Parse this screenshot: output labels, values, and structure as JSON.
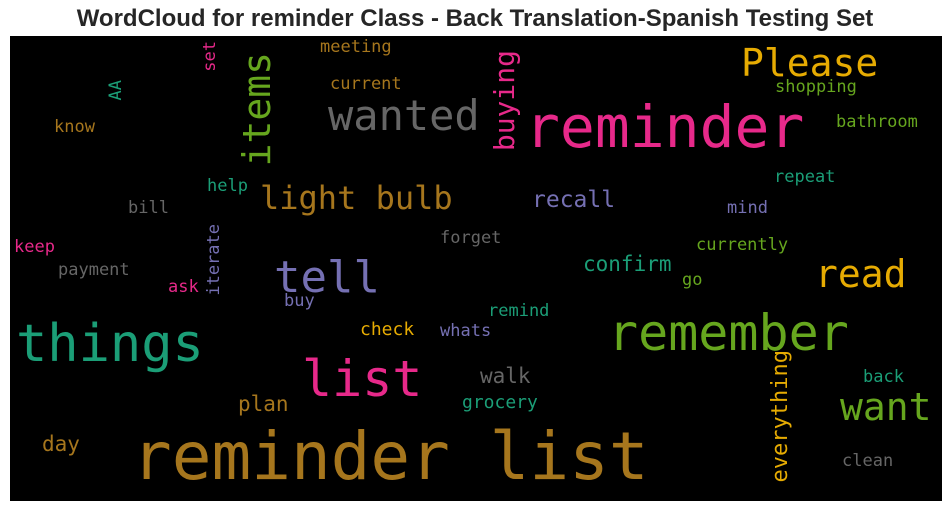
{
  "title": "WordCloud for reminder Class - Back Translation-Spanish Testing Set",
  "background_color": "#000000",
  "palette": {
    "green": "#1b9e77",
    "orange": "#d95f02",
    "purple": "#7570b3",
    "pink": "#e7298a",
    "lime": "#66a61e",
    "gold": "#e6ab02",
    "brown": "#a6761d",
    "gray": "#666666"
  },
  "words": {
    "reminder_list": "reminder list",
    "reminder": "reminder",
    "things": "things",
    "remember": "remember",
    "list": "list",
    "wanted": "wanted",
    "tell": "tell",
    "read": "read",
    "want": "want",
    "please": "Please",
    "items": "items",
    "light_bulb": "light bulb",
    "buying": "buying",
    "everything": "everything",
    "recall": "recall",
    "confirm": "confirm",
    "walk": "walk",
    "plan": "plan",
    "day": "day",
    "grocery": "grocery",
    "check": "check",
    "whats": "whats",
    "remind": "remind",
    "go": "go",
    "currently": "currently",
    "forget": "forget",
    "iterate": "iterate",
    "mind": "mind",
    "repeat": "repeat",
    "help": "help",
    "bill": "bill",
    "keep": "keep",
    "payment": "payment",
    "ask": "ask",
    "buy": "buy",
    "know": "know",
    "aa": "AA",
    "set": "set",
    "meeting": "meeting",
    "current": "current",
    "shopping": "shopping",
    "bathroom": "bathroom",
    "back": "back",
    "clean": "clean"
  }
}
